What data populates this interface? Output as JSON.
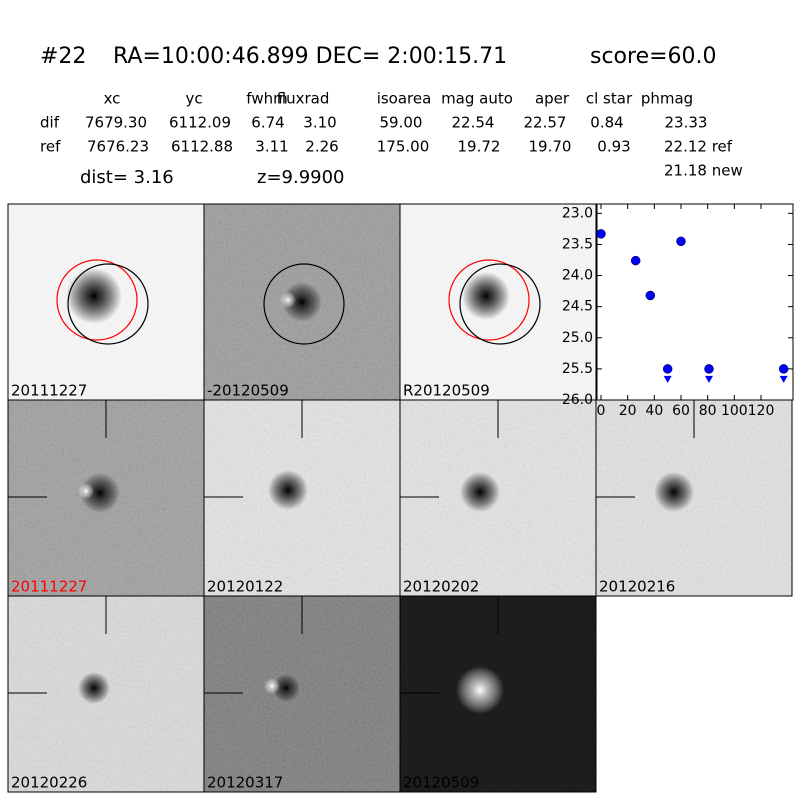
{
  "header": {
    "object": "#22",
    "coords": "RA=10:00:46.899 DEC= 2:00:15.71",
    "score": "score=60.0"
  },
  "table": {
    "columns": [
      "xc",
      "yc",
      "fwhm",
      "fluxrad",
      "isoarea",
      "mag auto",
      "aper",
      "cl star",
      "phmag"
    ],
    "rows": [
      [
        "dif",
        "7679.30",
        "6112.09",
        "6.74",
        "3.10",
        "59.00",
        "22.54",
        "22.57",
        "0.84",
        "23.33"
      ],
      [
        "ref",
        "7676.23",
        "6112.88",
        "3.11",
        "2.26",
        "175.00",
        "19.72",
        "19.70",
        "0.93",
        "22.12 ref"
      ]
    ],
    "extra": "21.18 new"
  },
  "dist": "dist=  3.16",
  "z": "z=9.9900",
  "panels": [
    {
      "label": "20111227"
    },
    {
      "label": "-20120509"
    },
    {
      "label": "R20120509"
    },
    {
      "label": "20111227"
    },
    {
      "label": "20120122"
    },
    {
      "label": "20120202"
    },
    {
      "label": "20120216"
    },
    {
      "label": "20120226"
    },
    {
      "label": "20120317"
    },
    {
      "label": "20120509"
    }
  ],
  "chart_data": {
    "type": "scatter",
    "series": [
      {
        "color": "#0000ff",
        "x": [
          0,
          26,
          37,
          60
        ],
        "values": [
          23.33,
          23.76,
          24.32,
          23.45
        ],
        "errors": [
          0.03,
          0.04,
          0.06,
          0.03
        ]
      },
      {
        "color": "#0000ff",
        "x": [
          50,
          81,
          137
        ],
        "values": [
          25.5,
          25.5,
          25.5
        ],
        "marker": "upper-limit"
      }
    ],
    "xlim": [
      -3,
      144
    ],
    "ylim": [
      26.0,
      22.85
    ],
    "xticks": [
      0,
      20,
      40,
      60,
      80,
      100,
      120
    ],
    "yticks": [
      {
        "value": 23.0,
        "label": "23.0"
      },
      {
        "value": 23.5,
        "label": "23.5"
      },
      {
        "value": 24.0,
        "label": "24.0"
      },
      {
        "value": 24.5,
        "label": "24.5"
      },
      {
        "value": 25.0,
        "label": "25.0"
      },
      {
        "value": 25.5,
        "label": "25.5"
      },
      {
        "value": 26.0,
        "label": "26.0"
      }
    ]
  }
}
